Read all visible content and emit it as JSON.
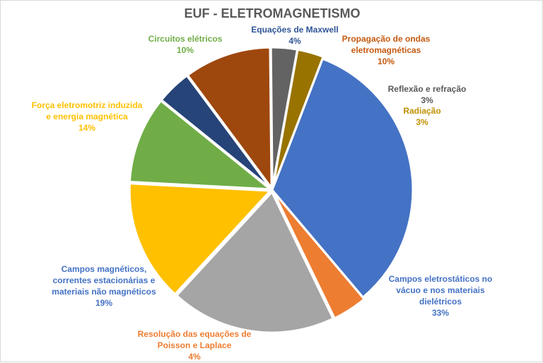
{
  "chart_data": {
    "type": "pie",
    "title": "EUF - ELETROMAGNETISMO",
    "slices": [
      {
        "label": [
          "Campos eletrostáticos no",
          "vácuo e nos materiais",
          "dielétricos"
        ],
        "value": 33,
        "value_label": "33%",
        "color": "#4472C4"
      },
      {
        "label": [
          "Resolução das equações de",
          "Poisson e Laplace"
        ],
        "value": 4,
        "value_label": "4%",
        "color": "#ED7D31"
      },
      {
        "label": [
          "Campos magnéticos,",
          "correntes estacionárias e",
          "materiais não magnéticos"
        ],
        "value": 19,
        "value_label": "19%",
        "color": "#A5A5A5"
      },
      {
        "label": [
          "Força eletromotriz induzida",
          "e energia magnética"
        ],
        "value": 14,
        "value_label": "14%",
        "color": "#FFC000"
      },
      {
        "label": [
          "Circuitos elétricos"
        ],
        "value": 10,
        "value_label": "10%",
        "color": "#70AD47"
      },
      {
        "label": [
          "Equações de Maxwell"
        ],
        "value": 4,
        "value_label": "4%",
        "color": "#264478"
      },
      {
        "label": [
          "Propagação de ondas",
          "eletromagnéticas"
        ],
        "value": 10,
        "value_label": "10%",
        "color": "#9E480E"
      },
      {
        "label": [
          "Reflexão e refração"
        ],
        "value": 3,
        "value_label": "3%",
        "color": "#636363"
      },
      {
        "label": [
          "Radiação"
        ],
        "value": 3,
        "value_label": "3%",
        "color": "#997300"
      }
    ]
  }
}
